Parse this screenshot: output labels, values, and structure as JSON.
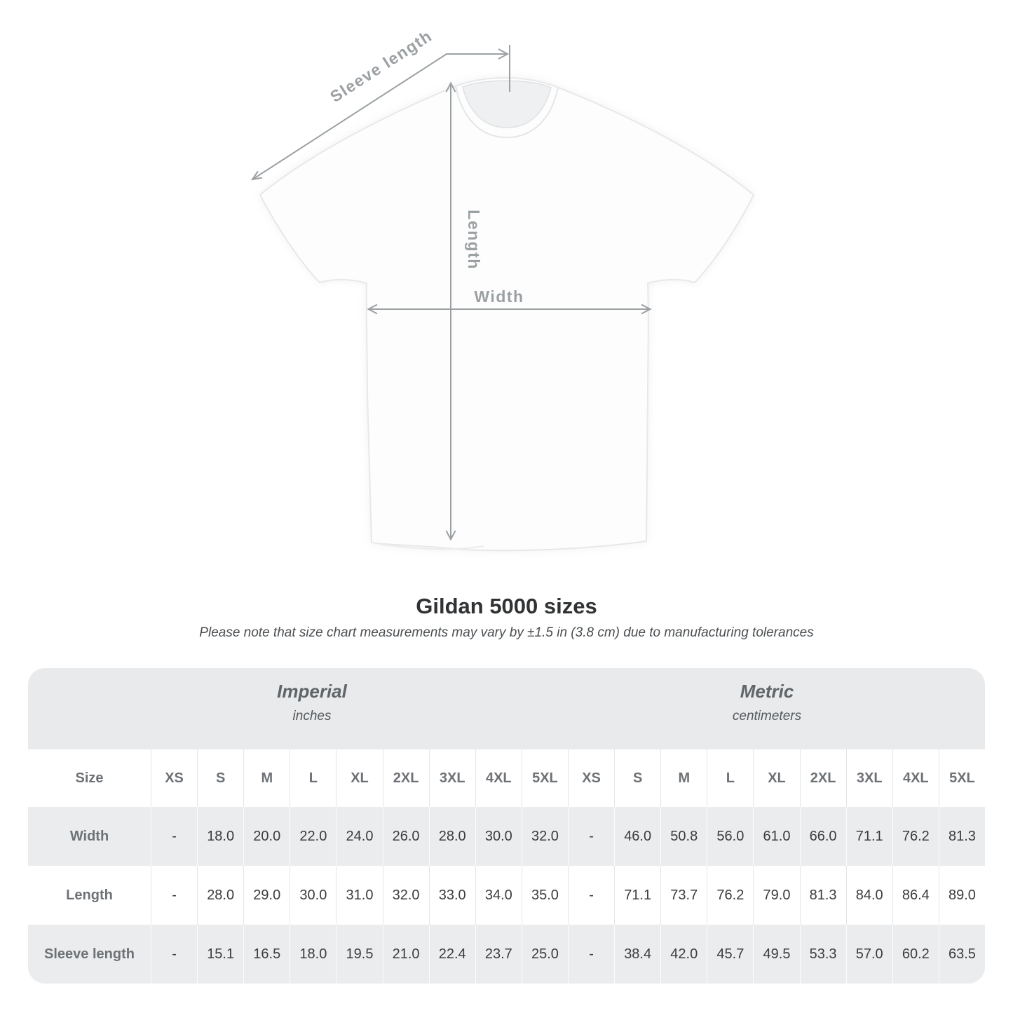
{
  "colors": {
    "annotation_gray": "#9ba0a3",
    "band_gray": "#e9eaeb",
    "row_gray": "#ebeced",
    "header_text": "#6e7276",
    "value_text": "#3a3c3e"
  },
  "diagram": {
    "description": "white t-shirt front with measurement arrows",
    "labels": {
      "sleeve_length": "Sleeve length",
      "length": "Length",
      "width": "Width"
    }
  },
  "heading": {
    "title": "Gildan 5000 sizes",
    "subtitle": "Please note that size chart measurements may vary by ±1.5 in (3.8 cm) due to manufacturing tolerances"
  },
  "table": {
    "groups": [
      {
        "label": "Imperial",
        "unit": "inches"
      },
      {
        "label": "Metric",
        "unit": "centimeters"
      }
    ],
    "size_col_header": "Size",
    "sizes": [
      "XS",
      "S",
      "M",
      "L",
      "XL",
      "2XL",
      "3XL",
      "4XL",
      "5XL"
    ],
    "rows": [
      {
        "label": "Width",
        "imperial": [
          "-",
          "18.0",
          "20.0",
          "22.0",
          "24.0",
          "26.0",
          "28.0",
          "30.0",
          "32.0"
        ],
        "metric": [
          "-",
          "46.0",
          "50.8",
          "56.0",
          "61.0",
          "66.0",
          "71.1",
          "76.2",
          "81.3"
        ]
      },
      {
        "label": "Length",
        "imperial": [
          "-",
          "28.0",
          "29.0",
          "30.0",
          "31.0",
          "32.0",
          "33.0",
          "34.0",
          "35.0"
        ],
        "metric": [
          "-",
          "71.1",
          "73.7",
          "76.2",
          "79.0",
          "81.3",
          "84.0",
          "86.4",
          "89.0"
        ]
      },
      {
        "label": "Sleeve length",
        "imperial": [
          "-",
          "15.1",
          "16.5",
          "18.0",
          "19.5",
          "21.0",
          "22.4",
          "23.7",
          "25.0"
        ],
        "metric": [
          "-",
          "38.4",
          "42.0",
          "45.7",
          "49.5",
          "53.3",
          "57.0",
          "60.2",
          "63.5"
        ]
      }
    ]
  }
}
